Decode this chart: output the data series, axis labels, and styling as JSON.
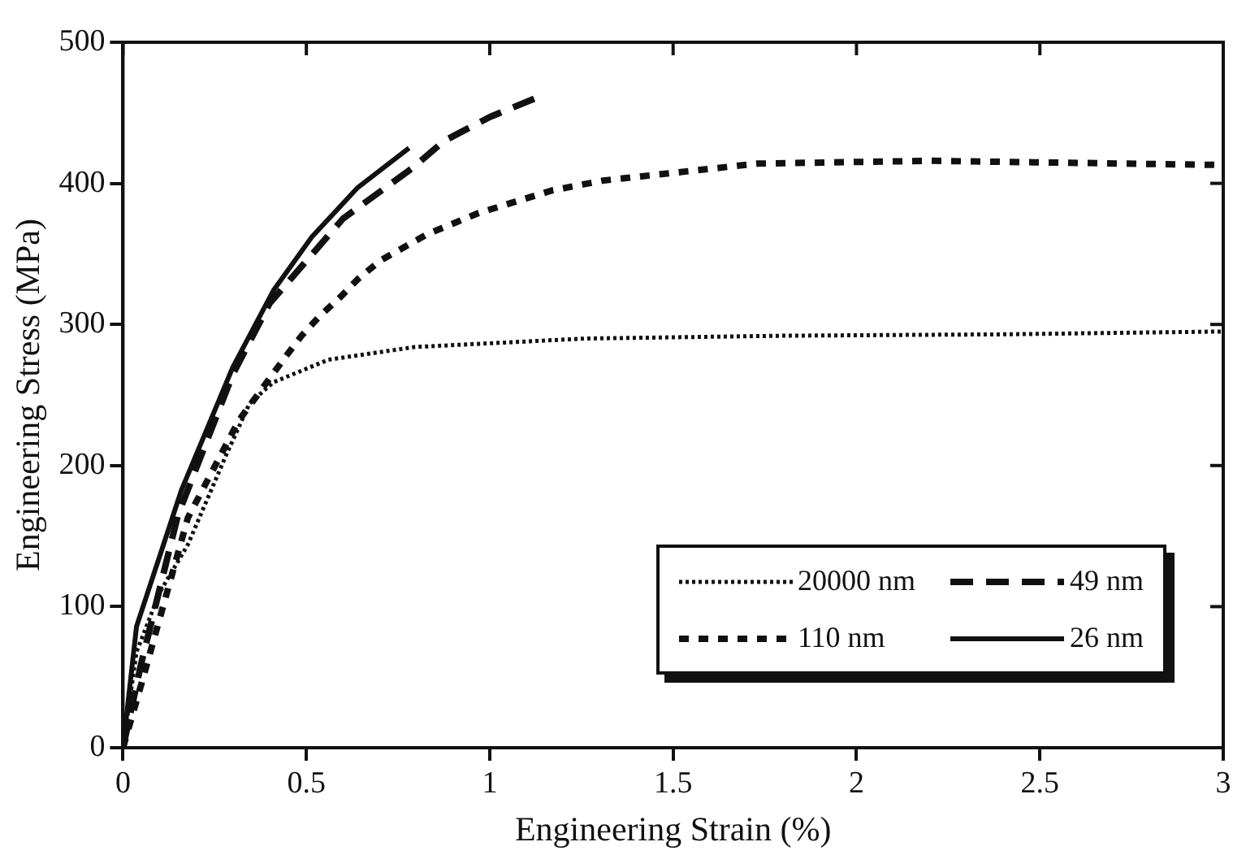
{
  "chart_data": {
    "type": "line",
    "xlabel": "Engineering Strain (%)",
    "ylabel": "Engineering Stress (MPa)",
    "xlim": [
      0,
      3
    ],
    "xticks": [
      0,
      0.5,
      1,
      1.5,
      2,
      2.5,
      3
    ],
    "ylim": [
      0,
      500
    ],
    "yticks": [
      0,
      100,
      200,
      300,
      400,
      500
    ],
    "grid": false,
    "legend": "bottom right",
    "marker": "none",
    "series": [
      {
        "name": "20000 nm",
        "color": "#111111",
        "line_style": "dotted",
        "x": [
          0,
          0.037,
          0.1,
          0.177,
          0.284,
          0.345,
          0.41,
          0.56,
          0.795,
          1.26,
          1.8,
          2.4,
          3.0
        ],
        "values": [
          0,
          68,
          110,
          144,
          209,
          244,
          259,
          275,
          284,
          290,
          292,
          293,
          295
        ]
      },
      {
        "name": "49 nm",
        "color": "#111111",
        "line_style": "dashed",
        "x": [
          0,
          0.05,
          0.15,
          0.3,
          0.4,
          0.5,
          0.6,
          0.795,
          0.875,
          1.0,
          1.14
        ],
        "values": [
          0,
          60,
          165,
          265,
          315,
          345,
          375,
          412,
          430,
          447,
          462
        ]
      },
      {
        "name": "110 nm",
        "color": "#111111",
        "line_style": "dashed",
        "x": [
          0,
          0.05,
          0.177,
          0.316,
          0.44,
          0.487,
          0.533,
          0.595,
          0.64,
          0.7,
          0.83,
          0.97,
          1.17,
          1.31,
          1.73,
          2.2,
          3.0
        ],
        "values": [
          0,
          45,
          163,
          232,
          276,
          292,
          305,
          320,
          332,
          345,
          364,
          379,
          395,
          402,
          414,
          416,
          413
        ]
      },
      {
        "name": "26 nm",
        "color": "#111111",
        "line_style": "solid",
        "x": [
          0,
          0.037,
          0.16,
          0.3,
          0.41,
          0.515,
          0.64,
          0.78
        ],
        "values": [
          0,
          86,
          183,
          270,
          324,
          362,
          397,
          425
        ]
      }
    ]
  }
}
